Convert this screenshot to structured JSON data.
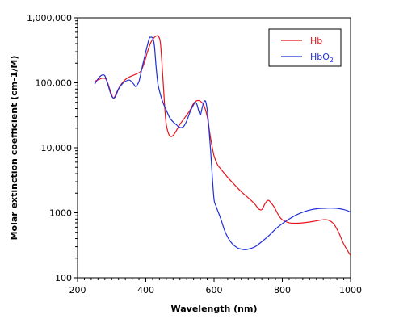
{
  "chart_data": {
    "type": "line",
    "title": "",
    "xlabel": "Wavelength (nm)",
    "ylabel": "Molar extinction coefficient (cm-1/M)",
    "xlim": [
      200,
      1000
    ],
    "ylim": [
      100,
      1000000
    ],
    "yscale": "log",
    "xticks": [
      200,
      400,
      600,
      800,
      1000
    ],
    "xtick_labels": [
      "200",
      "400",
      "600",
      "800",
      "1000"
    ],
    "yticks": [
      100,
      1000,
      10000,
      100000,
      1000000
    ],
    "ytick_labels": [
      "100",
      "1000",
      "10,000",
      "100,000",
      "1,000,000"
    ],
    "grid": false,
    "legend": {
      "placement": "top-right"
    },
    "series": [
      {
        "name": "Hb",
        "name_main": "Hb",
        "name_sub": "",
        "color": "#e8141c",
        "x": [
          250,
          262,
          275,
          285,
          295,
          305,
          315,
          325,
          340,
          355,
          370,
          385,
          395,
          405,
          415,
          425,
          433,
          437,
          443,
          450,
          458,
          465,
          472,
          480,
          490,
          500,
          510,
          520,
          530,
          540,
          550,
          560,
          570,
          580,
          590,
          600,
          610,
          620,
          640,
          660,
          680,
          700,
          720,
          730,
          740,
          750,
          760,
          775,
          790,
          800,
          820,
          840,
          860,
          880,
          900,
          920,
          935,
          950,
          965,
          980,
          1000
        ],
        "y": [
          105000,
          112000,
          118000,
          110000,
          78000,
          58000,
          72000,
          90000,
          112000,
          125000,
          135000,
          150000,
          200000,
          300000,
          420000,
          500000,
          530000,
          520000,
          400000,
          120000,
          28000,
          17500,
          15000,
          15500,
          18500,
          23000,
          27000,
          32000,
          38000,
          48000,
          53000,
          52000,
          45000,
          30000,
          14000,
          7500,
          5500,
          4700,
          3500,
          2700,
          2100,
          1700,
          1350,
          1150,
          1120,
          1400,
          1550,
          1250,
          900,
          780,
          700,
          690,
          700,
          720,
          750,
          780,
          770,
          680,
          500,
          330,
          220
        ]
      },
      {
        "name": "HbO2",
        "name_main": "HbO",
        "name_sub": "2",
        "color": "#1f2fd8",
        "x": [
          250,
          260,
          270,
          280,
          290,
          300,
          310,
          320,
          330,
          340,
          350,
          355,
          365,
          370,
          380,
          390,
          400,
          410,
          415,
          420,
          425,
          430,
          435,
          440,
          450,
          460,
          470,
          480,
          490,
          500,
          510,
          520,
          530,
          540,
          545,
          550,
          555,
          560,
          565,
          570,
          575,
          580,
          585,
          590,
          595,
          600,
          605,
          610,
          620,
          630,
          640,
          650,
          660,
          670,
          680,
          690,
          700,
          720,
          740,
          760,
          780,
          800,
          820,
          840,
          860,
          880,
          900,
          920,
          940,
          960,
          980,
          990,
          1000
        ],
        "y": [
          95000,
          115000,
          130000,
          128000,
          90000,
          62000,
          60000,
          80000,
          95000,
          105000,
          110000,
          108000,
          95000,
          88000,
          105000,
          180000,
          300000,
          480000,
          500000,
          490000,
          380000,
          180000,
          100000,
          75000,
          50000,
          38000,
          29000,
          25000,
          22500,
          20500,
          21000,
          26000,
          36000,
          46000,
          50000,
          46000,
          37000,
          32000,
          41000,
          50000,
          52000,
          38000,
          20000,
          9000,
          3500,
          1600,
          1300,
          1100,
          800,
          550,
          420,
          350,
          310,
          285,
          275,
          270,
          275,
          300,
          360,
          440,
          560,
          680,
          800,
          920,
          1020,
          1100,
          1150,
          1170,
          1180,
          1170,
          1120,
          1080,
          1020
        ]
      }
    ]
  }
}
